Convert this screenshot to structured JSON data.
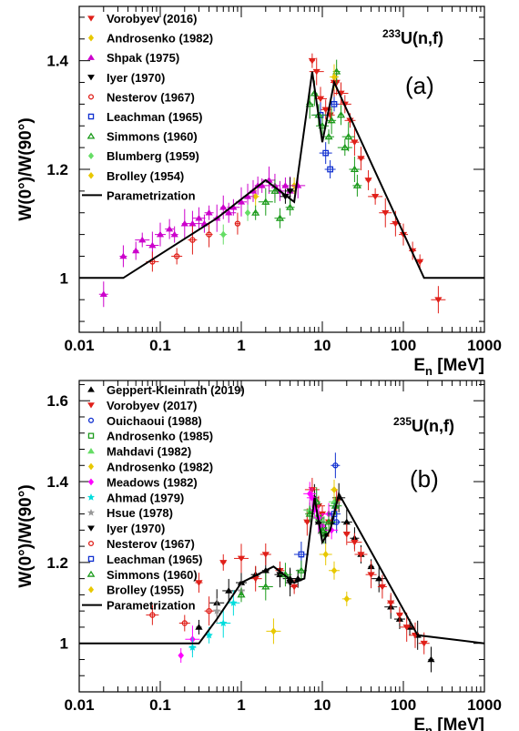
{
  "chart_data": [
    {
      "type": "scatter",
      "panel_label": "(a)",
      "reaction_sup": "233",
      "reaction_main": "U(n,f)",
      "xlabel_main": "E",
      "xlabel_sub": "n",
      "xlabel_unit": " [MeV]",
      "ylabel": "W(0°)/W(90°)",
      "xscale": "log",
      "xlim": [
        0.01,
        1000
      ],
      "ylim": [
        0.9,
        1.5
      ],
      "xticks": [
        {
          "v": 0.01,
          "label": "0.01"
        },
        {
          "v": 0.1,
          "label": "0.1"
        },
        {
          "v": 1,
          "label": "1"
        },
        {
          "v": 10,
          "label": "10"
        },
        {
          "v": 100,
          "label": "100"
        },
        {
          "v": 1000,
          "label": "1000"
        }
      ],
      "yticks": [
        {
          "v": 1,
          "label": "1"
        },
        {
          "v": 1.2,
          "label": "1.2"
        },
        {
          "v": 1.4,
          "label": "1.4"
        }
      ],
      "legend_position": "top-left",
      "parametrization": {
        "label": "Parametrization",
        "x": [
          0.01,
          0.035,
          0.5,
          2.0,
          4.5,
          7.5,
          10.0,
          14.0,
          180,
          1000
        ],
        "y": [
          1.0,
          1.0,
          1.11,
          1.18,
          1.14,
          1.38,
          1.25,
          1.36,
          1.0,
          1.0
        ]
      },
      "series": [
        {
          "name": "Vorobyev (2016)",
          "marker": "tri-down",
          "color": "#e0201a",
          "points": [
            [
              7.5,
              1.4
            ],
            [
              8.5,
              1.38
            ],
            [
              9.5,
              1.33
            ],
            [
              11,
              1.31
            ],
            [
              12.5,
              1.3
            ],
            [
              14,
              1.36
            ],
            [
              15,
              1.36
            ],
            [
              17,
              1.34
            ],
            [
              19,
              1.32
            ],
            [
              22,
              1.29
            ],
            [
              25,
              1.25
            ],
            [
              30,
              1.22
            ],
            [
              37,
              1.18
            ],
            [
              45,
              1.15
            ],
            [
              60,
              1.12
            ],
            [
              80,
              1.1
            ],
            [
              100,
              1.08
            ],
            [
              130,
              1.05
            ],
            [
              160,
              1.03
            ],
            [
              270,
              0.96
            ]
          ]
        },
        {
          "name": "Androsenko (1982)",
          "marker": "diamond",
          "color": "#e8c800",
          "points": [
            [
              1.5,
              1.15
            ],
            [
              4.5,
              1.17
            ]
          ]
        },
        {
          "name": "Shpak (1975)",
          "marker": "tri-up",
          "color": "#cc00cc",
          "points": [
            [
              0.02,
              0.97
            ],
            [
              0.035,
              1.04
            ],
            [
              0.05,
              1.05
            ],
            [
              0.06,
              1.07
            ],
            [
              0.08,
              1.06
            ],
            [
              0.1,
              1.08
            ],
            [
              0.13,
              1.09
            ],
            [
              0.15,
              1.08
            ],
            [
              0.2,
              1.1
            ],
            [
              0.25,
              1.1
            ],
            [
              0.3,
              1.11
            ],
            [
              0.35,
              1.1
            ],
            [
              0.4,
              1.12
            ],
            [
              0.5,
              1.11
            ],
            [
              0.6,
              1.13
            ],
            [
              0.7,
              1.12
            ],
            [
              0.8,
              1.13
            ],
            [
              1.0,
              1.14
            ],
            [
              1.2,
              1.15
            ],
            [
              1.4,
              1.16
            ],
            [
              1.6,
              1.17
            ],
            [
              1.8,
              1.17
            ],
            [
              2.2,
              1.18
            ],
            [
              2.6,
              1.17
            ],
            [
              3.0,
              1.16
            ],
            [
              3.5,
              1.17
            ],
            [
              4.0,
              1.16
            ],
            [
              5.0,
              1.17
            ]
          ]
        },
        {
          "name": "Iyer (1970)",
          "marker": "tri-down",
          "color": "#000000",
          "points": [
            [
              3.5,
              1.15
            ],
            [
              4.0,
              1.16
            ]
          ]
        },
        {
          "name": "Nesterov (1967)",
          "marker": "circle",
          "color": "#e0201a",
          "points": [
            [
              0.08,
              1.03
            ],
            [
              0.16,
              1.04
            ],
            [
              0.25,
              1.07
            ],
            [
              0.4,
              1.08
            ],
            [
              0.9,
              1.1
            ]
          ]
        },
        {
          "name": "Leachman (1965)",
          "marker": "square",
          "color": "#1030d0",
          "points": [
            [
              9.5,
              1.3
            ],
            [
              11,
              1.23
            ],
            [
              12.5,
              1.2
            ],
            [
              14,
              1.32
            ]
          ]
        },
        {
          "name": "Simmons (1960)",
          "marker": "tri-up",
          "color": "#1a9a1a",
          "points": [
            [
              1.5,
              1.12
            ],
            [
              2.0,
              1.14
            ],
            [
              2.6,
              1.16
            ],
            [
              3.0,
              1.11
            ],
            [
              4.0,
              1.13
            ],
            [
              7.0,
              1.32
            ],
            [
              8.0,
              1.34
            ],
            [
              9.0,
              1.3
            ],
            [
              10,
              1.28
            ],
            [
              12,
              1.26
            ],
            [
              13,
              1.29
            ],
            [
              15,
              1.38
            ],
            [
              17,
              1.3
            ],
            [
              19,
              1.24
            ],
            [
              21,
              1.26
            ],
            [
              25,
              1.2
            ],
            [
              27,
              1.17
            ]
          ]
        },
        {
          "name": "Blumberg (1959)",
          "marker": "diamond",
          "color": "#66dd66",
          "points": [
            [
              0.6,
              1.08
            ],
            [
              1.2,
              1.12
            ]
          ]
        },
        {
          "name": "Brolley (1954)",
          "marker": "diamond",
          "color": "#e8c800",
          "points": [
            [
              14,
              1.37
            ]
          ]
        }
      ]
    },
    {
      "type": "scatter",
      "panel_label": "(b)",
      "reaction_sup": "235",
      "reaction_main": "U(n,f)",
      "xlabel_main": "E",
      "xlabel_sub": "n",
      "xlabel_unit": " [MeV]",
      "ylabel": "W(0°)/W(90°)",
      "xscale": "log",
      "xlim": [
        0.01,
        1000
      ],
      "ylim": [
        0.88,
        1.65
      ],
      "xticks": [
        {
          "v": 0.01,
          "label": "0.01"
        },
        {
          "v": 0.1,
          "label": "0.1"
        },
        {
          "v": 1,
          "label": "1"
        },
        {
          "v": 10,
          "label": "10"
        },
        {
          "v": 100,
          "label": "100"
        },
        {
          "v": 1000,
          "label": "1000"
        }
      ],
      "yticks": [
        {
          "v": 1,
          "label": "1"
        },
        {
          "v": 1.2,
          "label": "1.2"
        },
        {
          "v": 1.4,
          "label": "1.4"
        },
        {
          "v": 1.6,
          "label": "1.6"
        }
      ],
      "legend_position": "top-left",
      "parametrization": {
        "label": "Parametrization",
        "x": [
          0.01,
          0.3,
          0.5,
          1.0,
          2.5,
          4.5,
          6.0,
          8.0,
          10.0,
          12.5,
          16.0,
          150,
          1000
        ],
        "y": [
          1.0,
          1.0,
          1.06,
          1.15,
          1.19,
          1.15,
          1.16,
          1.36,
          1.25,
          1.28,
          1.37,
          1.02,
          1.0
        ]
      },
      "series": [
        {
          "name": "Geppert-Kleinrath (2019)",
          "marker": "tri-up",
          "color": "#000000",
          "points": [
            [
              0.3,
              1.04
            ],
            [
              0.5,
              1.1
            ],
            [
              0.7,
              1.13
            ],
            [
              1.0,
              1.15
            ],
            [
              1.5,
              1.17
            ],
            [
              2.0,
              1.18
            ],
            [
              3.0,
              1.17
            ],
            [
              4.0,
              1.16
            ],
            [
              5.0,
              1.16
            ],
            [
              7.0,
              1.33
            ],
            [
              8.0,
              1.36
            ],
            [
              9.0,
              1.3
            ],
            [
              11,
              1.27
            ],
            [
              13,
              1.3
            ],
            [
              16,
              1.36
            ],
            [
              20,
              1.3
            ],
            [
              25,
              1.26
            ],
            [
              30,
              1.22
            ],
            [
              40,
              1.19
            ],
            [
              50,
              1.16
            ],
            [
              70,
              1.09
            ],
            [
              90,
              1.06
            ],
            [
              120,
              1.04
            ],
            [
              150,
              1.02
            ],
            [
              220,
              0.96
            ]
          ]
        },
        {
          "name": "Vorobyev (2017)",
          "marker": "tri-down",
          "color": "#e0201a",
          "points": [
            [
              0.3,
              1.15
            ],
            [
              0.6,
              1.2
            ],
            [
              1.0,
              1.21
            ],
            [
              1.5,
              1.16
            ],
            [
              2.0,
              1.22
            ],
            [
              3.0,
              1.18
            ],
            [
              4.5,
              1.14
            ],
            [
              6.5,
              1.3
            ],
            [
              7.5,
              1.38
            ],
            [
              9.0,
              1.34
            ],
            [
              10,
              1.32
            ],
            [
              12,
              1.3
            ],
            [
              15,
              1.35
            ],
            [
              20,
              1.27
            ],
            [
              25,
              1.25
            ],
            [
              30,
              1.22
            ],
            [
              40,
              1.17
            ],
            [
              55,
              1.14
            ],
            [
              70,
              1.1
            ],
            [
              90,
              1.07
            ],
            [
              110,
              1.04
            ],
            [
              140,
              1.02
            ],
            [
              180,
              1.0
            ]
          ]
        },
        {
          "name": "Ouichaoui (1988)",
          "marker": "circle",
          "color": "#1030d0",
          "points": [
            [
              14.5,
              1.44
            ],
            [
              15,
              1.3
            ]
          ]
        },
        {
          "name": "Androsenko (1985)",
          "marker": "square",
          "color": "#1a9a1a",
          "points": [
            [
              9,
              1.31
            ],
            [
              10.5,
              1.28
            ]
          ]
        },
        {
          "name": "Mahdavi (1982)",
          "marker": "tri-up",
          "color": "#66dd66",
          "points": [
            [
              7,
              1.33
            ],
            [
              14,
              1.35
            ]
          ]
        },
        {
          "name": "Androsenko (1982)",
          "marker": "diamond",
          "color": "#e8c800",
          "points": [
            [
              2.5,
              1.03
            ],
            [
              11,
              1.22
            ],
            [
              14,
              1.18
            ],
            [
              20,
              1.11
            ]
          ]
        },
        {
          "name": "Meadows (1982)",
          "marker": "diamond",
          "color": "#ff00ff",
          "points": [
            [
              0.18,
              0.97
            ],
            [
              0.25,
              1.01
            ],
            [
              7.0,
              1.37
            ],
            [
              7.5,
              1.36
            ],
            [
              8.0,
              1.33
            ],
            [
              9.0,
              1.31
            ],
            [
              10,
              1.29
            ],
            [
              12,
              1.32
            ],
            [
              13,
              1.28
            ]
          ]
        },
        {
          "name": "Ahmad (1979)",
          "marker": "star",
          "color": "#00dddd",
          "points": [
            [
              0.25,
              0.99
            ],
            [
              0.4,
              1.02
            ],
            [
              0.6,
              1.05
            ],
            [
              0.8,
              1.1
            ]
          ]
        },
        {
          "name": "Hsue (1978)",
          "marker": "star",
          "color": "#999999",
          "points": [
            [
              0.5,
              1.08
            ],
            [
              1.0,
              1.13
            ]
          ]
        },
        {
          "name": "Iyer (1970)",
          "marker": "tri-down",
          "color": "#000000",
          "points": [
            [
              3.0,
              1.17
            ],
            [
              4.0,
              1.15
            ]
          ]
        },
        {
          "name": "Nesterov (1967)",
          "marker": "circle",
          "color": "#e0201a",
          "points": [
            [
              0.08,
              1.07
            ],
            [
              0.2,
              1.05
            ],
            [
              0.4,
              1.08
            ]
          ]
        },
        {
          "name": "Leachman (1965)",
          "marker": "square",
          "color": "#1030d0",
          "points": [
            [
              5.5,
              1.22
            ],
            [
              14,
              1.32
            ]
          ]
        },
        {
          "name": "Simmons (1960)",
          "marker": "tri-up",
          "color": "#1a9a1a",
          "points": [
            [
              1.0,
              1.12
            ],
            [
              2.0,
              1.14
            ],
            [
              3.5,
              1.17
            ],
            [
              5.5,
              1.18
            ],
            [
              7.0,
              1.32
            ],
            [
              8.5,
              1.35
            ],
            [
              10,
              1.28
            ],
            [
              12,
              1.3
            ],
            [
              14.5,
              1.34
            ]
          ]
        },
        {
          "name": "Brolley (1955)",
          "marker": "diamond",
          "color": "#e8c800",
          "points": [
            [
              14,
              1.38
            ]
          ]
        }
      ]
    }
  ]
}
